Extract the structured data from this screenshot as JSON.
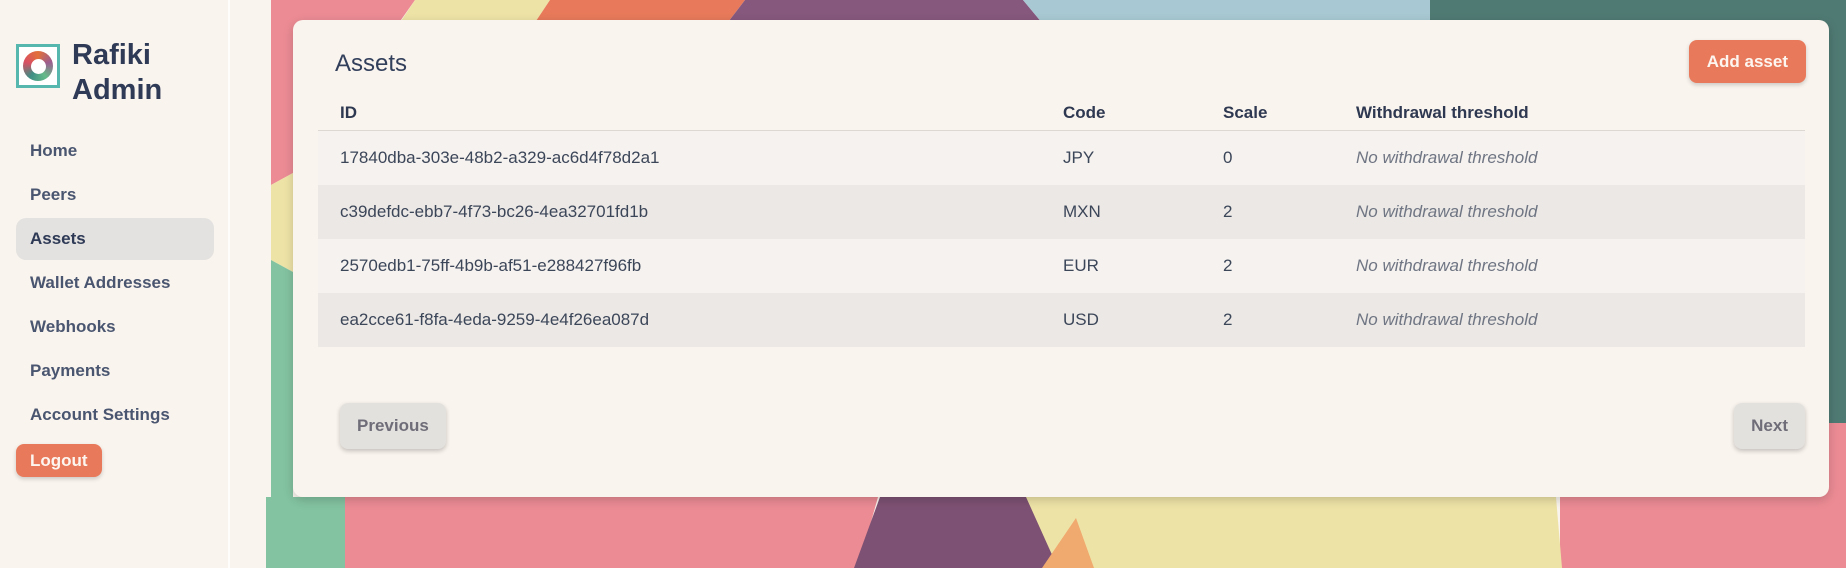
{
  "sidebar": {
    "brand": {
      "line1": "Rafiki",
      "line2": "Admin",
      "logo": "rafiki-ring-logo"
    },
    "items": [
      {
        "label": "Home",
        "active": false
      },
      {
        "label": "Peers",
        "active": false
      },
      {
        "label": "Assets",
        "active": true
      },
      {
        "label": "Wallet Addresses",
        "active": false
      },
      {
        "label": "Webhooks",
        "active": false
      },
      {
        "label": "Payments",
        "active": false
      },
      {
        "label": "Account Settings",
        "active": false
      }
    ],
    "logout_label": "Logout"
  },
  "main": {
    "title": "Assets",
    "add_button_label": "Add asset",
    "table": {
      "columns": [
        "ID",
        "Code",
        "Scale",
        "Withdrawal threshold"
      ],
      "rows": [
        {
          "id": "17840dba-303e-48b2-a329-ac6d4f78d2a1",
          "code": "JPY",
          "scale": "0",
          "threshold": "No withdrawal threshold"
        },
        {
          "id": "c39defdc-ebb7-4f73-bc26-4ea32701fd1b",
          "code": "MXN",
          "scale": "2",
          "threshold": "No withdrawal threshold"
        },
        {
          "id": "2570edb1-75ff-4b9b-af51-e288427f96fb",
          "code": "EUR",
          "scale": "2",
          "threshold": "No withdrawal threshold"
        },
        {
          "id": "ea2cce61-f8fa-4eda-9259-4e4f26ea087d",
          "code": "USD",
          "scale": "2",
          "threshold": "No withdrawal threshold"
        }
      ]
    },
    "pagination": {
      "previous_label": "Previous",
      "next_label": "Next"
    }
  },
  "colors": {
    "accent_coral": "#e87a5b",
    "cream_background": "#faf4ee",
    "navy_text": "#2e3a56",
    "row_stripe_light": "#f5f2ef",
    "row_stripe_dark": "#ebe8e5",
    "art_pink": "#ec8b94",
    "art_yellow": "#eee3a7",
    "art_purple": "#86587d",
    "art_blue": "#a8c8d3",
    "art_teal": "#4f7a73",
    "art_green": "#83c3a1",
    "art_orange": "#f0a96e",
    "logo_border_teal": "#56b7ae"
  }
}
